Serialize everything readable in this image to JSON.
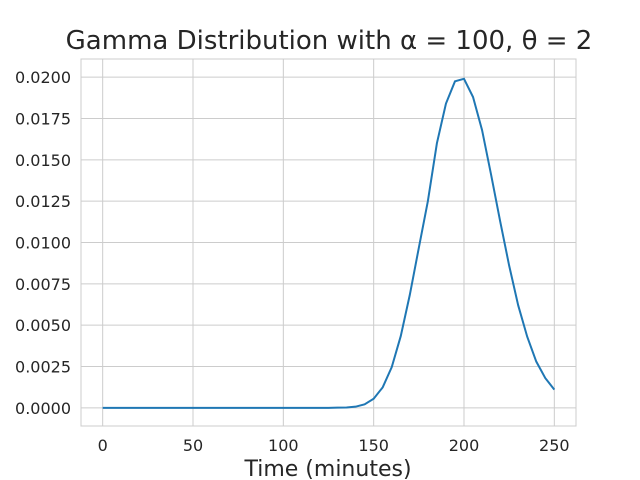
{
  "chart_data": {
    "type": "line",
    "title": "Gamma Distribution with α = 100, θ = 2",
    "xlabel": "Time (minutes)",
    "ylabel": "",
    "xlim": [
      -12,
      262
    ],
    "ylim": [
      -0.0011,
      0.0211
    ],
    "grid": true,
    "xticks": [
      0,
      50,
      100,
      150,
      200,
      250
    ],
    "xtick_labels": [
      "0",
      "50",
      "100",
      "150",
      "200",
      "250"
    ],
    "yticks": [
      0,
      0.0025,
      0.005,
      0.0075,
      0.01,
      0.0125,
      0.015,
      0.0175,
      0.02
    ],
    "ytick_labels": [
      "0.0000",
      "0.0025",
      "0.0050",
      "0.0075",
      "0.0100",
      "0.0125",
      "0.0150",
      "0.0175",
      "0.0200"
    ],
    "line_color": "#1f77b4",
    "series": [
      {
        "x": [
          0,
          5,
          10,
          15,
          20,
          25,
          30,
          35,
          40,
          45,
          50,
          55,
          60,
          65,
          70,
          75,
          80,
          85,
          90,
          95,
          100,
          105,
          110,
          115,
          120,
          125,
          130,
          135,
          140,
          145,
          150,
          155,
          160,
          165,
          170,
          175,
          180,
          185,
          190,
          195,
          200,
          205,
          210,
          215,
          220,
          225,
          230,
          235,
          240,
          245,
          250
        ],
        "values": [
          0,
          0,
          0,
          0,
          0,
          0,
          0,
          0,
          0,
          0,
          0,
          0,
          0,
          0,
          0,
          0,
          0,
          0,
          0,
          0,
          0,
          0,
          0,
          0,
          0,
          0,
          1e-05,
          2e-05,
          7e-05,
          0.00021,
          0.00055,
          0.00124,
          0.00246,
          0.00434,
          0.00683,
          0.00968,
          0.0125,
          0.016,
          0.0184,
          0.01975,
          0.0199,
          0.0188,
          0.0168,
          0.0141,
          0.0113,
          0.0086,
          0.0062,
          0.0043,
          0.0028,
          0.0018,
          0.0011
        ]
      }
    ]
  }
}
